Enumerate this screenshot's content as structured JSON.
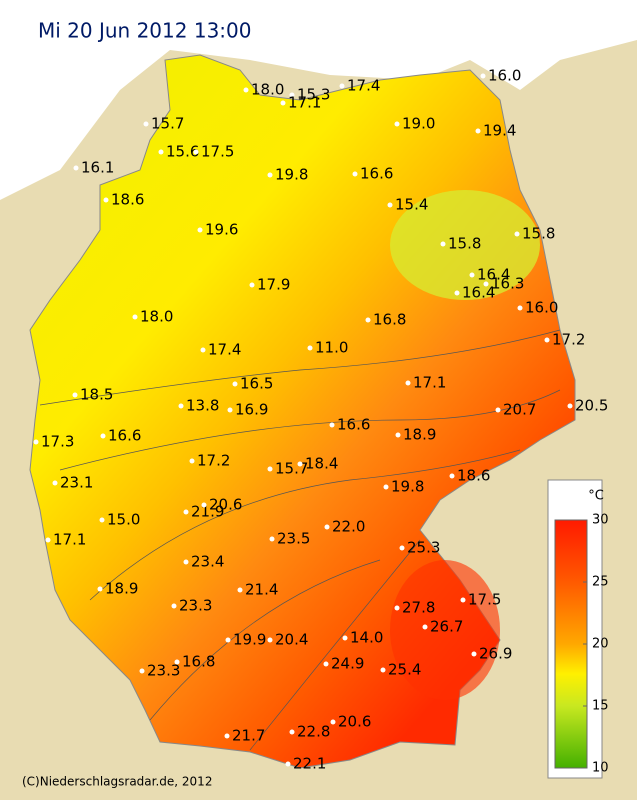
{
  "header": {
    "title": "Mi 20 Jun 2012 13:00"
  },
  "stations": [
    "18.0",
    "15.3",
    "17.1",
    "17.4",
    "16.0",
    "15.7",
    "19.0",
    "19.4",
    "15.6",
    "17.5",
    "16.1",
    "19.8",
    "16.6",
    "18.6",
    "15.4",
    "19.6",
    "15.8",
    "15.8",
    "16.4",
    "16.3",
    "16.4",
    "17.9",
    "16.0",
    "18.0",
    "16.8",
    "17.2",
    "17.4",
    "11.0",
    "16.5",
    "17.1",
    "18.5",
    "13.8",
    "16.9",
    "20.7",
    "20.5",
    "16.6",
    "17.3",
    "16.6",
    "18.9",
    "17.2",
    "15.7",
    "18.4",
    "18.6",
    "23.1",
    "19.8",
    "21.9",
    "20.6",
    "15.0",
    "23.5",
    "22.0",
    "25.3",
    "17.1",
    "23.4",
    "21.4",
    "18.9",
    "17.5",
    "23.3",
    "27.8",
    "26.7",
    "14.0",
    "19.9",
    "20.4",
    "26.9",
    "24.9",
    "25.4",
    "16.8",
    "23.3",
    "21.7",
    "22.8",
    "20.6",
    "22.1"
  ],
  "legend": {
    "unit": "°C",
    "ticks": [
      "30",
      "25",
      "20",
      "15",
      "10"
    ]
  },
  "footer": {
    "credit": "(C)Niederschlagsradar.de, 2012"
  }
}
